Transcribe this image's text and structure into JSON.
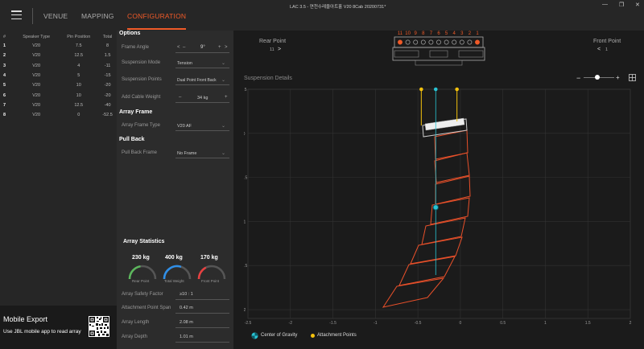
{
  "window": {
    "title": "LAC 3.5 - 연천수레울아트홀 V20 8Cab 20200731*",
    "minimize": "—",
    "restore": "❐",
    "close": "✕"
  },
  "nav": {
    "tabs": [
      {
        "label": "VENUE",
        "active": false
      },
      {
        "label": "MAPPING",
        "active": false
      },
      {
        "label": "CONFIGURATION",
        "active": true
      }
    ]
  },
  "speaker_table": {
    "headers": [
      "#",
      "Speaker Type",
      "Pin Position",
      "Total"
    ],
    "rows": [
      [
        "1",
        "V20",
        "7.5",
        "8"
      ],
      [
        "2",
        "V20",
        "12.5",
        "1.5"
      ],
      [
        "3",
        "V20",
        "4",
        "-11"
      ],
      [
        "4",
        "V20",
        "5",
        "-15"
      ],
      [
        "5",
        "V20",
        "10",
        "-20"
      ],
      [
        "6",
        "V20",
        "10",
        "-20"
      ],
      [
        "7",
        "V20",
        "12.5",
        "-40"
      ],
      [
        "8",
        "V20",
        "0",
        "-52.5"
      ]
    ]
  },
  "options": {
    "section_title": "Options",
    "frame_angle_label": "Frame Angle",
    "frame_angle_value": "9°",
    "frame_angle_minus": "<",
    "frame_angle_dash": "–",
    "frame_angle_plus": "+",
    "frame_angle_right": ">",
    "suspension_mode_label": "Suspension Mode",
    "suspension_mode_value": "Tension",
    "suspension_points_label": "Suspension Points",
    "suspension_points_value": "Dual Point Front Back",
    "cable_weight_label": "Add Cable Weight",
    "cable_weight_minus": "–",
    "cable_weight_value": "34 kg",
    "cable_weight_plus": "+",
    "array_frame_title": "Array Frame",
    "array_frame_type_label": "Array Frame Type",
    "array_frame_type_value": "V20 AF",
    "pull_back_title": "Pull Back",
    "pull_back_frame_label": "Pull Back Frame",
    "pull_back_frame_value": "No Frame"
  },
  "array_statistics": {
    "title": "Array Statistics",
    "gauges": [
      {
        "value": "230 kg",
        "label": "Rear Point",
        "color": "#5cb85c",
        "fraction": 0.45
      },
      {
        "value": "400 kg",
        "label": "Total Weight",
        "color": "#2f8fe8",
        "fraction": 0.6
      },
      {
        "value": "170 kg",
        "label": "Front Point",
        "color": "#e84040",
        "fraction": 0.35
      }
    ],
    "safety_factor_label": "Array Safety Factor",
    "safety_factor_value": "≥10 : 1",
    "attach_span_label": "Attachment Point Span",
    "attach_span_value": "0.42 m",
    "length_label": "Array Length",
    "length_value": "2.08 m",
    "depth_label": "Array Depth",
    "depth_value": "1.01 m"
  },
  "mobile_export": {
    "title": "Mobile Export",
    "subtitle": "Use JBL mobile app to read array"
  },
  "frame_view": {
    "rear_point_label": "Rear Point",
    "rear_point_value": "11",
    "rear_point_arrow": ">",
    "front_point_label": "Front Point",
    "front_point_arrow": "<",
    "front_point_value": "1",
    "pin_numbers": [
      "11",
      "10",
      "9",
      "8",
      "7",
      "6",
      "5",
      "4",
      "3",
      "2",
      "1"
    ],
    "active_pins": [
      "11",
      "1"
    ]
  },
  "suspension": {
    "title": "Suspension Details",
    "zoom_minus": "−",
    "zoom_plus": "+",
    "zoom_level": 0.45
  },
  "legend": {
    "center_of_gravity": "Center of Gravity",
    "attachment_points": "Attachment Points"
  },
  "colors": {
    "accent": "#f05a28",
    "cabinet": "#e8502a",
    "gravity": "#29c4d4",
    "attach": "#f4c20d"
  },
  "chart_data": {
    "type": "scatter",
    "x_ticks": [
      "-2.5",
      "-2",
      "-1.5",
      "-1",
      "-0.5",
      "0",
      "0.5",
      "1",
      "1.5",
      "2"
    ],
    "y_ticks": [
      "0.5",
      "0",
      "-0.5",
      "-1",
      "-1.5",
      "-2"
    ],
    "x_tick_values": [
      -2.5,
      -2,
      -1.5,
      -1,
      -0.5,
      0,
      0.5,
      1,
      1.5,
      2
    ],
    "y_tick_values": [
      0.5,
      0,
      -0.5,
      -1,
      -1.5,
      -2
    ],
    "xlim": [
      -2.5,
      2.0
    ],
    "ylim": [
      -2.1,
      0.5
    ],
    "attachment_points": [
      [
        -0.46,
        0.5
      ],
      [
        -0.04,
        0.5
      ]
    ],
    "center_of_gravity": [
      -0.29,
      -0.84
    ],
    "grid": true
  }
}
